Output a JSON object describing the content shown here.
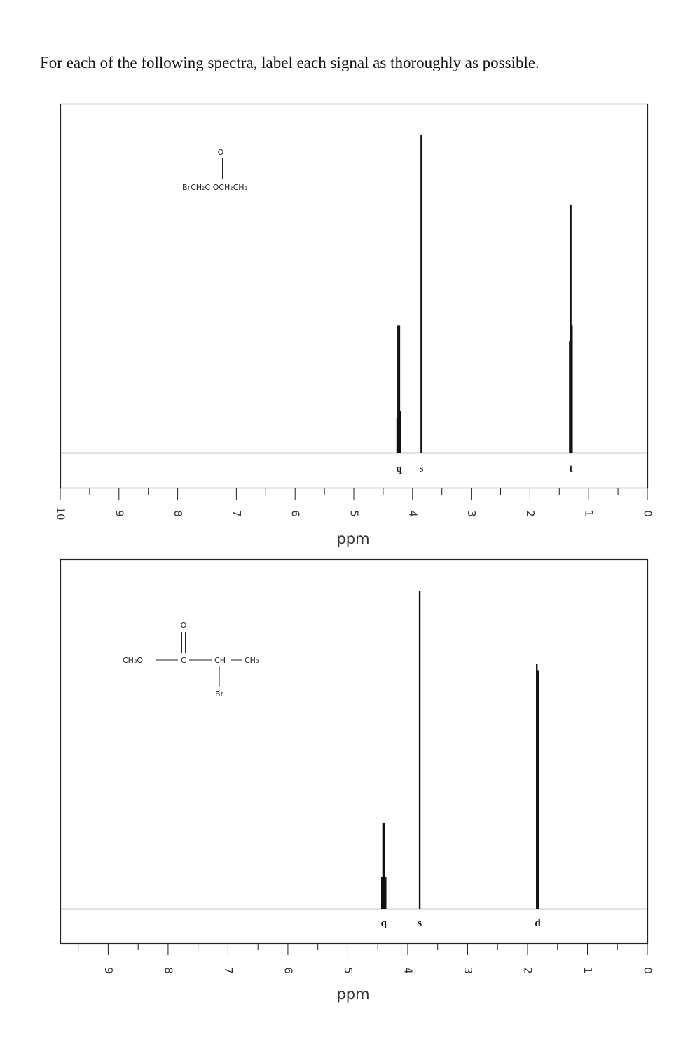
{
  "instruction": "For each of the following spectra, label each signal as thoroughly as possible.",
  "chart_data": [
    {
      "type": "line",
      "xlabel": "ppm",
      "x_reversed": true,
      "xlim": [
        10,
        0
      ],
      "tick_labels": [
        "10",
        "9",
        "8",
        "7",
        "6",
        "5",
        "4",
        "3",
        "2",
        "1",
        "0"
      ],
      "tick_values": [
        10,
        9,
        8,
        7,
        6,
        5,
        4,
        3,
        2,
        1,
        0
      ],
      "structure": {
        "carbonyl_oxygen": "O",
        "formula": "BrCH₂C OCH₂CH₃"
      },
      "signals": [
        {
          "label": "q",
          "shift": 4.23,
          "lines": [
            {
              "x": 4.26,
              "h": 0.11
            },
            {
              "x": 4.245,
              "h": 0.4
            },
            {
              "x": 4.225,
              "h": 0.4
            },
            {
              "x": 4.205,
              "h": 0.13
            }
          ]
        },
        {
          "label": "s",
          "shift": 3.85,
          "lines": [
            {
              "x": 3.85,
              "h": 1.0
            }
          ]
        },
        {
          "label": "t",
          "shift": 1.3,
          "lines": [
            {
              "x": 1.32,
              "h": 0.35
            },
            {
              "x": 1.305,
              "h": 0.78
            },
            {
              "x": 1.285,
              "h": 0.4
            }
          ]
        }
      ]
    },
    {
      "type": "line",
      "xlabel": "ppm",
      "x_reversed": true,
      "xlim": [
        9.8,
        0
      ],
      "tick_labels": [
        "9",
        "8",
        "7",
        "6",
        "5",
        "4",
        "3",
        "2",
        "1",
        "0"
      ],
      "tick_values": [
        9,
        8,
        7,
        6,
        5,
        4,
        3,
        2,
        1,
        0
      ],
      "structure": {
        "carbonyl_oxygen": "O",
        "methoxy": "CH₃O",
        "carbonyl_carbon": "C",
        "methine": "CH",
        "methyl": "CH₃",
        "bromine": "Br"
      },
      "signals": [
        {
          "label": "q",
          "shift": 4.4,
          "lines": [
            {
              "x": 4.43,
              "h": 0.1
            },
            {
              "x": 4.41,
              "h": 0.27
            },
            {
              "x": 4.39,
              "h": 0.27
            },
            {
              "x": 4.37,
              "h": 0.1
            }
          ]
        },
        {
          "label": "s",
          "shift": 3.8,
          "lines": [
            {
              "x": 3.8,
              "h": 1.0
            }
          ]
        },
        {
          "label": "d",
          "shift": 1.83,
          "lines": [
            {
              "x": 1.845,
              "h": 0.77
            },
            {
              "x": 1.825,
              "h": 0.75
            }
          ]
        }
      ]
    }
  ]
}
